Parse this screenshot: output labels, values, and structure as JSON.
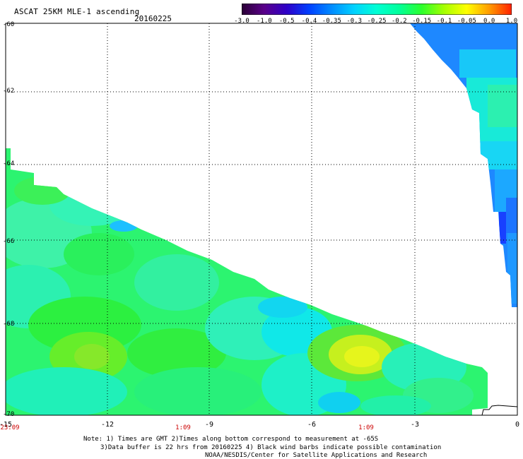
{
  "header": {
    "title": "ASCAT 25KM MLE-1 ascending",
    "date": "20160225"
  },
  "colorbar": {
    "labels": [
      "-3.0",
      "-1.0",
      "-0.5",
      "-0.4",
      "-0.35",
      "-0.3",
      "-0.25",
      "-0.2",
      "-0.15",
      "-0.1",
      "-0.05",
      "0.0",
      "1.0"
    ],
    "colors": [
      "#2a0035",
      "#5a008a",
      "#2f00c8",
      "#0040ff",
      "#008cff",
      "#00d2ff",
      "#00ffd4",
      "#00ff9a",
      "#2cff2c",
      "#a6ff00",
      "#ffff00",
      "#ff9c00",
      "#ff2000"
    ]
  },
  "map": {
    "x_axis_labels": [
      "-15",
      "-12",
      "-9",
      "-6",
      "-3",
      "0"
    ],
    "y_axis_labels": [
      "-60",
      "-62",
      "-64",
      "-66",
      "-68",
      "-70"
    ],
    "time_labels": [
      "23:09",
      "1:09",
      "1:09"
    ],
    "time_label_color": "#cc0000",
    "grid": "dotted",
    "lon_range": [
      -15,
      0
    ],
    "lat_range": [
      -70,
      -60
    ]
  },
  "footer": {
    "note1": "Note: 1) Times are GMT 2)Times along bottom correspond to measurement at -65S",
    "note2": "3)Data buffer is 22 hrs from 20160225 4) Black wind barbs indicate possible contamination",
    "note3": "NOAA/NESDIS/Center for Satellite Applications and Research"
  }
}
